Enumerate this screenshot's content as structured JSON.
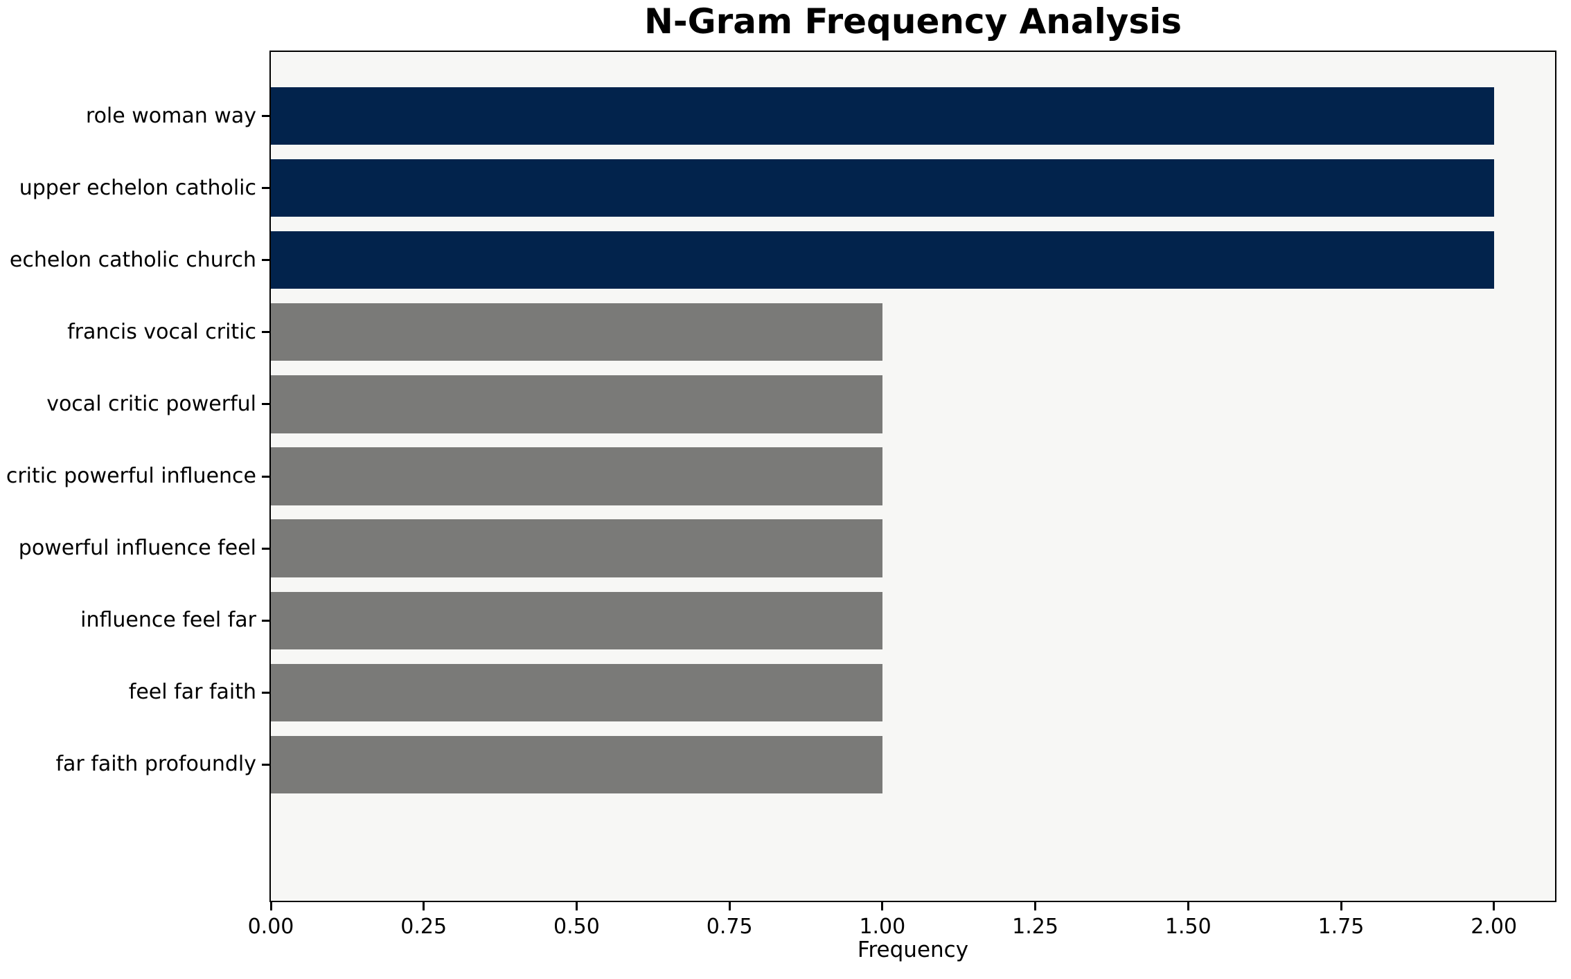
{
  "chart_data": {
    "type": "bar",
    "orientation": "horizontal",
    "title": "N-Gram Frequency Analysis",
    "xlabel": "Frequency",
    "ylabel": "",
    "categories": [
      "role woman way",
      "upper echelon catholic",
      "echelon catholic church",
      "francis vocal critic",
      "vocal critic powerful",
      "critic powerful influence",
      "powerful influence feel",
      "influence feel far",
      "feel far faith",
      "far faith profoundly"
    ],
    "values": [
      2,
      2,
      2,
      1,
      1,
      1,
      1,
      1,
      1,
      1
    ],
    "bar_colors": [
      "#02234C",
      "#02234C",
      "#02234C",
      "#7A7A78",
      "#7A7A78",
      "#7A7A78",
      "#7A7A78",
      "#7A7A78",
      "#7A7A78",
      "#7A7A78"
    ],
    "xlim": [
      0,
      2.1
    ],
    "x_tick_values": [
      0,
      0.25,
      0.5,
      0.75,
      1.0,
      1.25,
      1.5,
      1.75,
      2.0
    ],
    "x_tick_labels": [
      "0.00",
      "0.25",
      "0.50",
      "0.75",
      "1.00",
      "1.25",
      "1.50",
      "1.75",
      "2.00"
    ],
    "colors": {
      "highlight_bar": "#02234C",
      "regular_bar": "#7A7A78",
      "plot_background": "#F7F7F5",
      "figure_background": "#FFFFFF",
      "axis_line": "#000000",
      "text": "#000000"
    },
    "grid": false,
    "legend": null
  }
}
